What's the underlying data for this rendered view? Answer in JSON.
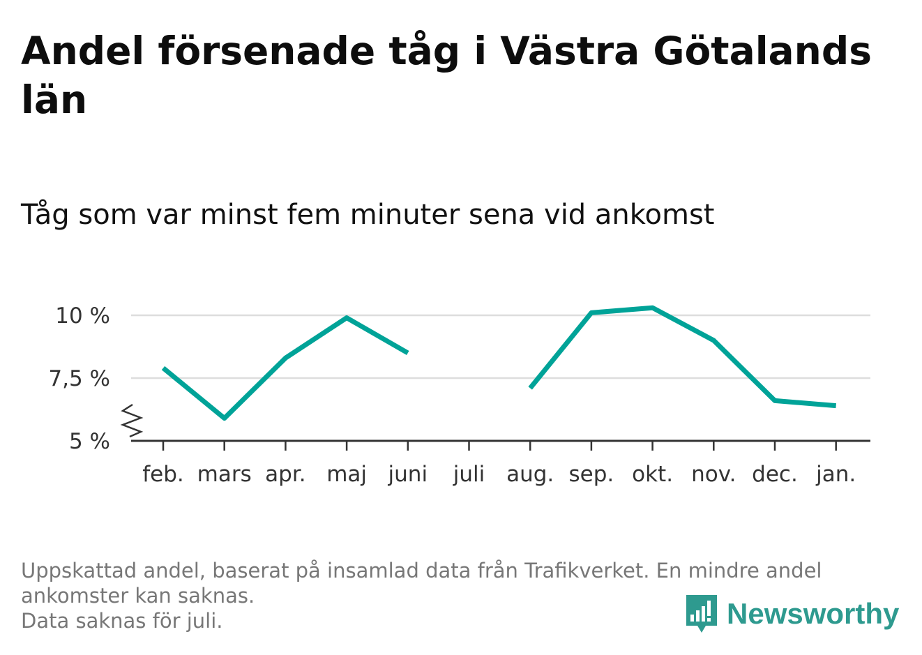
{
  "title": "Andel försenade tåg i Västra Götalands län",
  "subtitle": "Tåg som var minst fem minuter sena vid ankomst",
  "footnote": {
    "line1": "Uppskattad andel, baserat på insamlad data från Trafikverket. En mindre andel",
    "line2": "ankomster kan saknas.",
    "line3": "Data saknas för juli."
  },
  "logo": {
    "text": "Newsworthy",
    "icon": "newsworthy-bar-chart-icon"
  },
  "colors": {
    "line": "#00a398",
    "grid": "#dddddd",
    "axis": "#333333",
    "brand": "#2e9a8f"
  },
  "chart_data": {
    "type": "line",
    "title": "Andel försenade tåg i Västra Götalands län",
    "subtitle": "Tåg som var minst fem minuter sena vid ankomst",
    "categories": [
      "feb.",
      "mars",
      "apr.",
      "maj",
      "juni",
      "juli",
      "aug.",
      "sep.",
      "okt.",
      "nov.",
      "dec.",
      "jan."
    ],
    "series": [
      {
        "values": [
          7.9,
          5.9,
          8.3,
          9.9,
          8.5,
          null,
          7.1,
          10.1,
          10.3,
          9.0,
          6.6,
          6.4
        ]
      }
    ],
    "yticks": [
      5,
      7.5,
      10
    ],
    "ytick_labels": [
      "5 %",
      "7,5 %",
      "10 %"
    ],
    "ylim": [
      5,
      10.5
    ],
    "axis_break": true,
    "grid": true,
    "xlabel": "",
    "ylabel": ""
  }
}
